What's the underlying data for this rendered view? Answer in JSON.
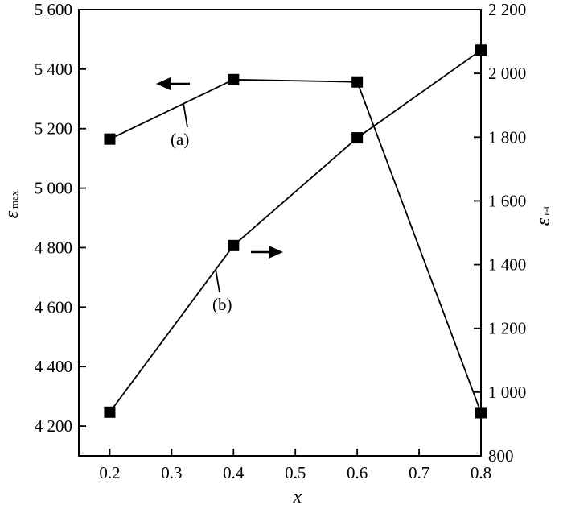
{
  "chart_data": {
    "type": "line",
    "x_axis": {
      "label": "x",
      "range": [
        0.15,
        0.8
      ],
      "ticks": [
        0.2,
        0.3,
        0.4,
        0.5,
        0.6,
        0.7,
        0.8
      ],
      "tick_labels": [
        "0.2",
        "0.3",
        "0.4",
        "0.5",
        "0.6",
        "0.7",
        "0.8"
      ]
    },
    "y_axis_left": {
      "label_main": "ε",
      "label_sub": "max",
      "range": [
        4100,
        5600
      ],
      "ticks": [
        4200,
        4400,
        4600,
        4800,
        5000,
        5200,
        5400,
        5600
      ],
      "tick_labels": [
        "4 200",
        "4 400",
        "4 600",
        "4 800",
        "5 000",
        "5 200",
        "5 400",
        "5 600"
      ]
    },
    "y_axis_right": {
      "label_main": "ε",
      "label_sub": "r-t",
      "range": [
        800,
        2200
      ],
      "ticks": [
        800,
        1000,
        1200,
        1400,
        1600,
        1800,
        2000,
        2200
      ],
      "tick_labels": [
        "800",
        "1 000",
        "1 200",
        "1 400",
        "1 600",
        "1 800",
        "2 000",
        "2 200"
      ]
    },
    "series": [
      {
        "name": "(a)",
        "axis": "left",
        "x": [
          0.2,
          0.4,
          0.6,
          0.8
        ],
        "y": [
          5165,
          5365,
          5357,
          4245
        ]
      },
      {
        "name": "(b)",
        "axis": "right",
        "x": [
          0.2,
          0.4,
          0.6,
          0.8
        ],
        "y": [
          937,
          1460,
          1798,
          2073
        ]
      }
    ],
    "legend": "none",
    "grid": false
  }
}
